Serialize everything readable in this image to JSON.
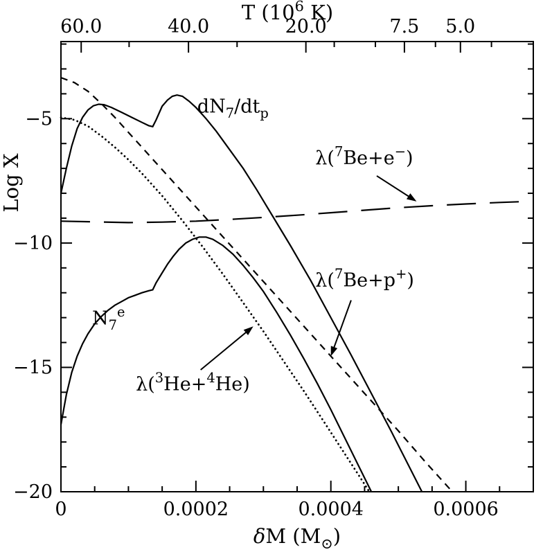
{
  "figure": {
    "background": "#ffffff",
    "line_color": "#000000"
  },
  "chart_data": {
    "type": "line",
    "title": "",
    "ylabel": "Log X",
    "xlabel_parts": [
      {
        "t": "δ",
        "italic": true
      },
      {
        "t": "M (M"
      },
      {
        "t": "⊙",
        "sub": true
      },
      {
        "t": ")"
      }
    ],
    "top_axis_label_parts": [
      {
        "t": "T (10"
      },
      {
        "t": "6",
        "sup": true
      },
      {
        "t": " K)"
      }
    ],
    "xlim": [
      0,
      0.0007
    ],
    "ylim": [
      -20,
      -1.9
    ],
    "grid": false,
    "legend_position": "none-inline-annotations",
    "xticks": {
      "values": [
        0,
        0.0002,
        0.0004,
        0.0006
      ],
      "labels": [
        "0",
        "0.0002",
        "0.0004",
        "0.0006"
      ]
    },
    "x_minor": [
      5e-05,
      0.0001,
      0.00015,
      0.00025,
      0.0003,
      0.00035,
      0.00045,
      0.0005,
      0.00055,
      0.00065
    ],
    "yticks": {
      "values": [
        -5,
        -10,
        -15,
        -20
      ],
      "labels": [
        "−5",
        "−10",
        "−15",
        "−20"
      ]
    },
    "y_minor": [
      -2,
      -3,
      -4,
      -6,
      -7,
      -8,
      -9,
      -11,
      -12,
      -13,
      -14,
      -16,
      -17,
      -18,
      -19
    ],
    "top_ticks": {
      "values": [
        3e-05,
        0.000189,
        0.000363,
        0.000509,
        0.000592
      ],
      "labels": [
        "60.0",
        "40.0",
        "20.0",
        "7.5",
        "5.0"
      ]
    },
    "top_minor": [
      0.000101,
      0.000261,
      0.000405,
      0.000466,
      0.000555,
      0.000638
    ],
    "series": [
      {
        "id": "dN7-dtp",
        "name": "dN7/dt_p",
        "style": "solid",
        "points": [
          [
            0,
            -8.0
          ],
          [
            8e-06,
            -7.0
          ],
          [
            1.6e-05,
            -6.1
          ],
          [
            2.4e-05,
            -5.4
          ],
          [
            3.2e-05,
            -4.95
          ],
          [
            4e-05,
            -4.65
          ],
          [
            4.8e-05,
            -4.48
          ],
          [
            5.6e-05,
            -4.42
          ],
          [
            6.4e-05,
            -4.44
          ],
          [
            7.5e-05,
            -4.55
          ],
          [
            9e-05,
            -4.75
          ],
          [
            0.000105,
            -4.95
          ],
          [
            0.00012,
            -5.15
          ],
          [
            0.00013,
            -5.28
          ],
          [
            0.000136,
            -5.32
          ],
          [
            0.000141,
            -5.05
          ],
          [
            0.00015,
            -4.5
          ],
          [
            0.000158,
            -4.25
          ],
          [
            0.000165,
            -4.1
          ],
          [
            0.000172,
            -4.05
          ],
          [
            0.00018,
            -4.1
          ],
          [
            0.00019,
            -4.3
          ],
          [
            0.0002,
            -4.55
          ],
          [
            0.000215,
            -5.0
          ],
          [
            0.00023,
            -5.5
          ],
          [
            0.00025,
            -6.25
          ],
          [
            0.00027,
            -7.0
          ],
          [
            0.00029,
            -7.85
          ],
          [
            0.00031,
            -8.75
          ],
          [
            0.00034,
            -10.1
          ],
          [
            0.00037,
            -11.5
          ],
          [
            0.0004,
            -13.0
          ],
          [
            0.00043,
            -14.5
          ],
          [
            0.00046,
            -16.05
          ],
          [
            0.00049,
            -17.6
          ],
          [
            0.00052,
            -19.2
          ],
          [
            0.000535,
            -20.0
          ]
        ]
      },
      {
        "id": "N7e",
        "name": "N7^e",
        "style": "solid",
        "points": [
          [
            0,
            -17.3
          ],
          [
            8e-06,
            -16.1
          ],
          [
            1.6e-05,
            -15.2
          ],
          [
            2.4e-05,
            -14.55
          ],
          [
            3.2e-05,
            -14.05
          ],
          [
            4e-05,
            -13.65
          ],
          [
            5e-05,
            -13.25
          ],
          [
            6e-05,
            -12.95
          ],
          [
            7e-05,
            -12.7
          ],
          [
            8e-05,
            -12.5
          ],
          [
            9e-05,
            -12.35
          ],
          [
            0.0001,
            -12.2
          ],
          [
            0.00011,
            -12.1
          ],
          [
            0.00012,
            -12.0
          ],
          [
            0.00013,
            -11.92
          ],
          [
            0.000136,
            -11.88
          ],
          [
            0.000141,
            -11.6
          ],
          [
            0.00015,
            -11.2
          ],
          [
            0.000158,
            -10.85
          ],
          [
            0.000166,
            -10.55
          ],
          [
            0.000175,
            -10.25
          ],
          [
            0.000185,
            -10.0
          ],
          [
            0.000195,
            -9.85
          ],
          [
            0.000205,
            -9.76
          ],
          [
            0.000215,
            -9.76
          ],
          [
            0.000225,
            -9.85
          ],
          [
            0.00024,
            -10.1
          ],
          [
            0.000255,
            -10.45
          ],
          [
            0.00027,
            -10.9
          ],
          [
            0.000285,
            -11.4
          ],
          [
            0.0003,
            -11.95
          ],
          [
            0.00032,
            -12.8
          ],
          [
            0.00034,
            -13.7
          ],
          [
            0.00036,
            -14.65
          ],
          [
            0.00038,
            -15.65
          ],
          [
            0.0004,
            -16.7
          ],
          [
            0.00042,
            -17.8
          ],
          [
            0.00044,
            -18.9
          ],
          [
            0.00046,
            -20.0
          ]
        ]
      },
      {
        "id": "lambda-7Be-p",
        "name": "lambda(7Be+p+)",
        "style": "short-dash",
        "points": [
          [
            0,
            -3.35
          ],
          [
            2e-05,
            -3.55
          ],
          [
            4e-05,
            -3.9
          ],
          [
            6e-05,
            -4.4
          ],
          [
            8e-05,
            -4.95
          ],
          [
            0.0001,
            -5.55
          ],
          [
            0.00012,
            -6.15
          ],
          [
            0.00015,
            -7.05
          ],
          [
            0.00018,
            -7.95
          ],
          [
            0.00021,
            -8.85
          ],
          [
            0.00024,
            -9.75
          ],
          [
            0.00027,
            -10.65
          ],
          [
            0.0003,
            -11.55
          ],
          [
            0.00034,
            -12.75
          ],
          [
            0.00038,
            -13.95
          ],
          [
            0.00042,
            -15.15
          ],
          [
            0.00046,
            -16.35
          ],
          [
            0.0005,
            -17.55
          ],
          [
            0.00054,
            -18.8
          ],
          [
            0.00058,
            -20.0
          ]
        ]
      },
      {
        "id": "lambda-3He-4He",
        "name": "lambda(3He+4He)",
        "style": "dotted",
        "points": [
          [
            0,
            -4.95
          ],
          [
            2e-05,
            -5.05
          ],
          [
            4e-05,
            -5.3
          ],
          [
            6e-05,
            -5.7
          ],
          [
            8e-05,
            -6.15
          ],
          [
            0.0001,
            -6.65
          ],
          [
            0.00012,
            -7.2
          ],
          [
            0.00015,
            -8.1
          ],
          [
            0.00018,
            -9.1
          ],
          [
            0.00021,
            -10.15
          ],
          [
            0.00024,
            -11.25
          ],
          [
            0.00027,
            -12.4
          ],
          [
            0.0003,
            -13.55
          ],
          [
            0.00033,
            -14.75
          ],
          [
            0.00036,
            -15.95
          ],
          [
            0.00039,
            -17.2
          ],
          [
            0.00042,
            -18.45
          ],
          [
            0.00045,
            -19.7
          ],
          [
            0.000457,
            -20.0
          ]
        ]
      },
      {
        "id": "lambda-7Be-e",
        "name": "lambda(7Be+e-)",
        "style": "long-dash",
        "points": [
          [
            0,
            -9.12
          ],
          [
            0.0001,
            -9.18
          ],
          [
            0.00015,
            -9.16
          ],
          [
            0.0002,
            -9.12
          ],
          [
            0.00025,
            -9.05
          ],
          [
            0.0003,
            -8.97
          ],
          [
            0.00035,
            -8.88
          ],
          [
            0.0004,
            -8.78
          ],
          [
            0.00045,
            -8.68
          ],
          [
            0.0005,
            -8.58
          ],
          [
            0.00055,
            -8.5
          ],
          [
            0.0006,
            -8.43
          ],
          [
            0.00065,
            -8.37
          ],
          [
            0.0007,
            -8.32
          ]
        ]
      }
    ],
    "annotations": [
      {
        "id": "dn7-label",
        "parts": [
          {
            "t": "dN"
          },
          {
            "t": "7",
            "sub": true
          },
          {
            "t": "/dt"
          },
          {
            "t": "p",
            "sub": true
          }
        ],
        "x": 0.000202,
        "y": -4.75,
        "anchor": "start"
      },
      {
        "id": "n7e-label",
        "parts": [
          {
            "t": "N"
          },
          {
            "t": "7",
            "sub": true
          },
          {
            "t": "e",
            "sup": true
          }
        ],
        "x": 4.62e-05,
        "y": -13.27,
        "anchor": "start"
      },
      {
        "id": "lambda-7Be-e-label",
        "parts": [
          {
            "t": "λ("
          },
          {
            "t": "7",
            "sup": true
          },
          {
            "t": "Be+e"
          },
          {
            "t": "−",
            "sup": true
          },
          {
            "t": ")"
          }
        ],
        "x": 0.000377,
        "y": -6.83,
        "anchor": "start",
        "arrow": {
          "x1": 0.000468,
          "y1": -7.3,
          "x2": 0.000527,
          "y2": -8.33
        }
      },
      {
        "id": "lambda-7Be-p-label",
        "parts": [
          {
            "t": "λ("
          },
          {
            "t": "7",
            "sup": true
          },
          {
            "t": "Be+p"
          },
          {
            "t": "+",
            "sup": true
          },
          {
            "t": ")"
          }
        ],
        "x": 0.000377,
        "y": -11.74,
        "anchor": "start",
        "arrow": {
          "x1": 0.00043,
          "y1": -12.3,
          "x2": 0.0004,
          "y2": -14.55
        }
      },
      {
        "id": "lambda-3He-4He-label",
        "parts": [
          {
            "t": "λ("
          },
          {
            "t": "3",
            "sup": true
          },
          {
            "t": "He+"
          },
          {
            "t": "4",
            "sup": true
          },
          {
            "t": "He)"
          }
        ],
        "x": 0.000111,
        "y": -15.92,
        "anchor": "start",
        "arrow": {
          "x1": 0.000207,
          "y1": -15.1,
          "x2": 0.000285,
          "y2": -13.35
        }
      }
    ]
  }
}
